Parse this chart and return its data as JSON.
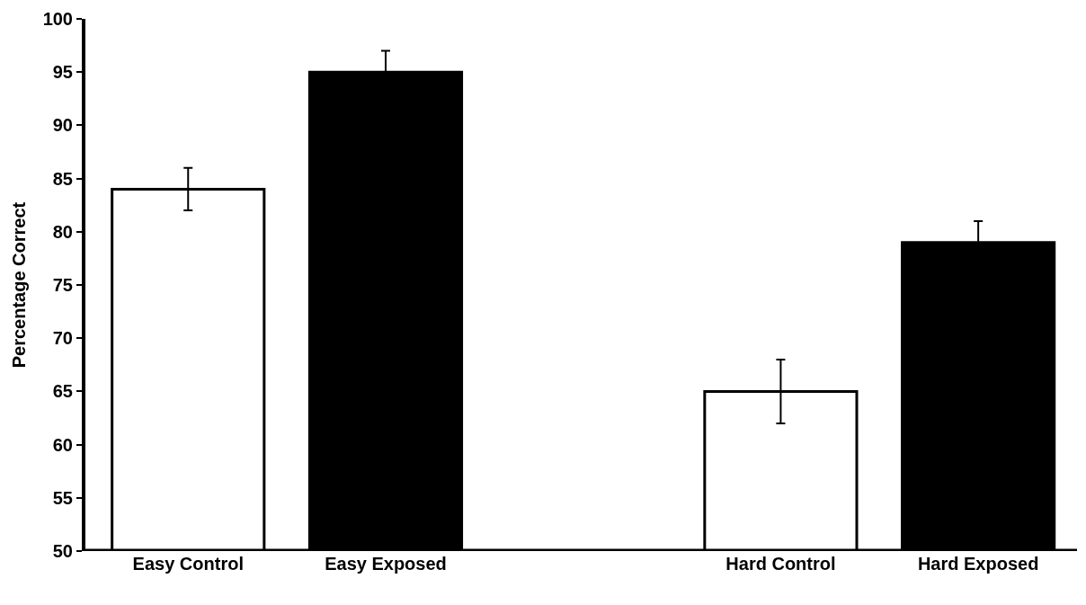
{
  "chart_data": {
    "type": "bar",
    "ylabel": "Percentage Correct",
    "categories": [
      "Easy Control",
      "Easy Exposed",
      null,
      "Hard Control",
      "Hard Exposed"
    ],
    "values": [
      84,
      95,
      null,
      65,
      79
    ],
    "colors": [
      "#ffffff",
      "#000000",
      null,
      "#ffffff",
      "#000000"
    ],
    "errors": [
      2,
      2,
      null,
      3,
      2
    ],
    "ylim": [
      50,
      100
    ],
    "yticks": [
      50,
      55,
      60,
      65,
      70,
      75,
      80,
      85,
      90,
      95,
      100
    ],
    "legend": false
  }
}
